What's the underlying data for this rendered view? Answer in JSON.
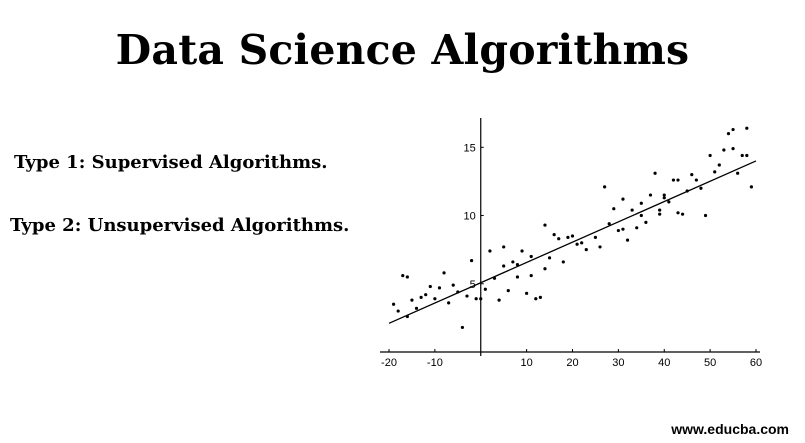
{
  "page": {
    "title": "Data Science Algorithms",
    "type_lines": [
      "Type 1: Supervised Algorithms.",
      "Type 2: Unsupervised Algorithms."
    ],
    "watermark": "www.educba.com"
  },
  "chart_data": {
    "type": "scatter",
    "title": "",
    "xlabel": "",
    "ylabel": "",
    "xlim": [
      -20,
      60
    ],
    "ylim": [
      0,
      17
    ],
    "xticks": [
      -20,
      -10,
      10,
      20,
      30,
      40,
      50,
      60
    ],
    "xtick_labels": [
      "-20",
      "-10",
      "10",
      "20",
      "30",
      "40",
      "50",
      "60"
    ],
    "yticks": [
      5,
      10,
      15
    ],
    "ytick_labels": [
      "5",
      "10",
      "15"
    ],
    "grid": false,
    "colors": {
      "points": "#000000",
      "line": "#000000",
      "axes": "#000000"
    },
    "series": [
      {
        "kind": "points",
        "x": [
          -19,
          -18,
          -17,
          -16,
          -15,
          -14,
          -12,
          -11,
          -10,
          -8,
          -7,
          -5,
          -4,
          -3,
          -2,
          -1,
          1,
          2,
          3,
          4,
          5,
          6,
          7,
          8,
          9,
          10,
          11,
          12,
          13,
          14,
          15,
          16,
          18,
          19,
          20,
          21,
          23,
          25,
          27,
          28,
          29,
          30,
          31,
          32,
          33,
          34,
          35,
          36,
          37,
          38,
          39,
          40,
          41,
          42,
          43,
          44,
          45,
          47,
          48,
          49,
          50,
          51,
          53,
          54,
          55,
          56,
          57,
          58,
          59,
          -16,
          -13,
          -9,
          -6,
          0,
          5,
          8,
          11,
          14,
          17,
          22,
          26,
          31,
          35,
          39,
          40,
          43,
          46,
          52,
          55,
          58
        ],
        "y": [
          3.5,
          3.0,
          5.6,
          2.6,
          3.8,
          3.2,
          4.2,
          4.8,
          3.9,
          5.8,
          3.6,
          4.4,
          1.8,
          4.1,
          6.7,
          3.9,
          4.6,
          7.4,
          5.4,
          3.8,
          7.7,
          4.5,
          6.6,
          5.5,
          7.4,
          4.3,
          7.0,
          3.9,
          4.0,
          9.3,
          6.9,
          8.6,
          6.6,
          8.4,
          8.5,
          7.9,
          7.5,
          8.4,
          12.1,
          9.4,
          10.5,
          8.9,
          11.2,
          8.2,
          10.4,
          9.1,
          10.9,
          9.5,
          11.5,
          13.1,
          10.1,
          11.3,
          11.0,
          12.6,
          10.2,
          10.1,
          11.8,
          12.6,
          12.0,
          10.0,
          14.4,
          13.2,
          14.8,
          16.0,
          16.3,
          13.1,
          14.4,
          16.4,
          12.1,
          5.5,
          4.0,
          4.7,
          4.9,
          3.9,
          6.3,
          6.4,
          5.6,
          6.1,
          8.3,
          8.0,
          7.7,
          9.0,
          10.0,
          10.4,
          11.5,
          12.6,
          13.0,
          13.7,
          14.9,
          14.4
        ],
        "name": ""
      },
      {
        "kind": "line",
        "x": [
          -20,
          60
        ],
        "y": [
          2.1,
          14.0
        ],
        "name": ""
      }
    ]
  }
}
